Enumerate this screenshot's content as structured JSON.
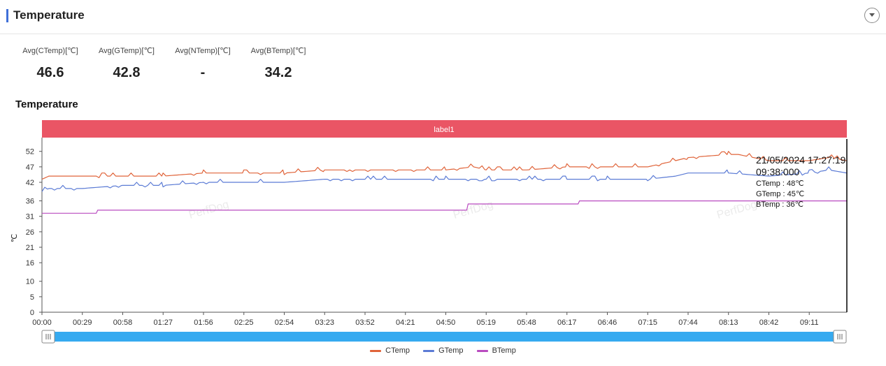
{
  "section": {
    "title": "Temperature"
  },
  "stats": [
    {
      "label": "Avg(CTemp)[℃]",
      "value": "46.6"
    },
    {
      "label": "Avg(GTemp)[℃]",
      "value": "42.8"
    },
    {
      "label": "Avg(NTemp)[℃]",
      "value": "-"
    },
    {
      "label": "Avg(BTemp)[℃]",
      "value": "34.2"
    }
  ],
  "chart_title": "Temperature",
  "label_band": "label1",
  "tooltip": {
    "datetime": "21/05/2024 17:27:19",
    "time": "09:38:000",
    "ctemp": "CTemp : 48℃",
    "gtemp": "GTemp : 45℃",
    "btemp": "BTemp : 36℃"
  },
  "watermark": "PerfDog",
  "colors": {
    "CTemp": "#e0643a",
    "GTemp": "#5b7bd5",
    "BTemp": "#b94bc0",
    "band": "#ea5565",
    "slider": "#36aaf0"
  },
  "chart_data": {
    "type": "line",
    "ylabel": "℃",
    "yticks": [
      0,
      5,
      10,
      16,
      21,
      26,
      31,
      36,
      42,
      47,
      52
    ],
    "ylim": [
      0,
      56
    ],
    "xlim": [
      0,
      578
    ],
    "xticks": [
      "00:00",
      "00:29",
      "00:58",
      "01:27",
      "01:56",
      "02:25",
      "02:54",
      "03:23",
      "03:52",
      "04:21",
      "04:50",
      "05:19",
      "05:48",
      "06:17",
      "06:46",
      "07:15",
      "07:44",
      "08:13",
      "08:42",
      "09:11"
    ],
    "series": [
      {
        "name": "CTemp",
        "x": [
          0,
          5,
          29,
          58,
          87,
          116,
          145,
          174,
          203,
          232,
          261,
          290,
          310,
          319,
          348,
          377,
          406,
          435,
          455,
          464,
          493,
          500,
          522,
          540,
          551,
          565,
          578
        ],
        "values": [
          43,
          44,
          44,
          44,
          44,
          45,
          45,
          45,
          46,
          46,
          46,
          46,
          47,
          46,
          46,
          47,
          47,
          47,
          49,
          50,
          51,
          51,
          49,
          49,
          49,
          50,
          49
        ]
      },
      {
        "name": "GTemp",
        "x": [
          0,
          5,
          29,
          58,
          87,
          116,
          145,
          174,
          203,
          232,
          261,
          290,
          319,
          348,
          377,
          406,
          435,
          455,
          464,
          493,
          522,
          551,
          565,
          578
        ],
        "values": [
          39,
          40,
          40,
          41,
          41,
          42,
          42,
          42,
          43,
          43,
          43,
          43,
          43,
          43,
          43,
          43,
          43,
          44,
          45,
          45,
          44,
          45,
          46,
          45
        ]
      },
      {
        "name": "BTemp",
        "x": [
          0,
          39,
          40,
          305,
          306,
          385,
          386,
          578
        ],
        "values": [
          32,
          32,
          33,
          33,
          35,
          35,
          36,
          36
        ]
      }
    ]
  },
  "legend": [
    "CTemp",
    "GTemp",
    "BTemp"
  ]
}
